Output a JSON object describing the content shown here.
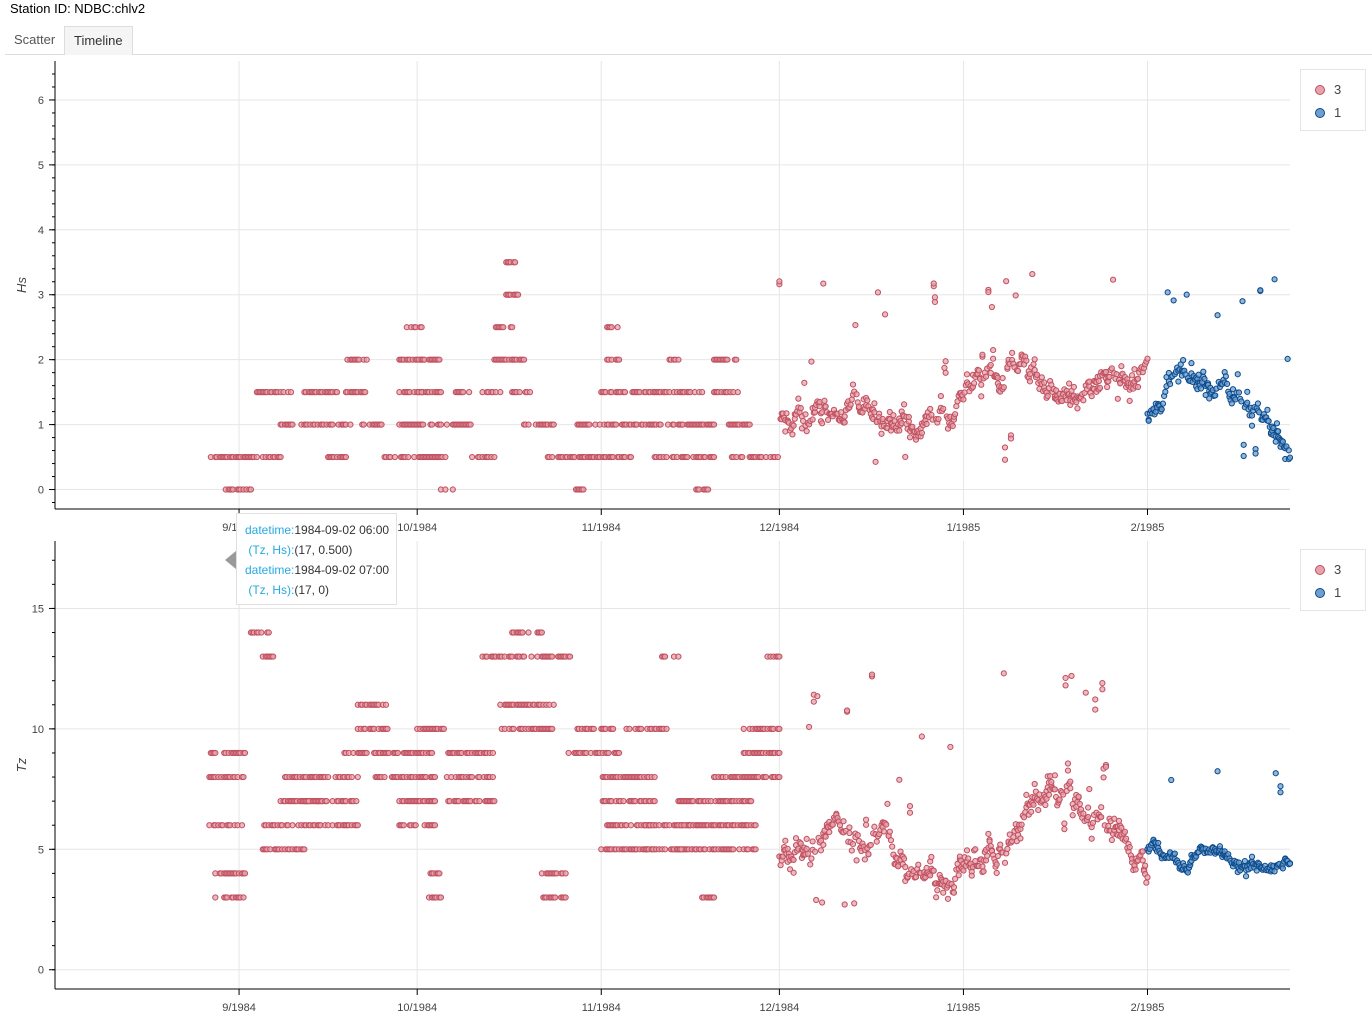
{
  "station": {
    "title": "Station ID: NDBC:chlv2"
  },
  "tabs": [
    {
      "label": "Scatter",
      "active": false
    },
    {
      "label": "Timeline",
      "active": true
    }
  ],
  "colors": {
    "series_3_fill": "#e7a3ad",
    "series_3_stroke": "#c0505f",
    "series_1_fill": "#6d9fd1",
    "series_1_stroke": "#0b4a8a"
  },
  "legend": [
    {
      "label": "3",
      "color": "#e7a3ad",
      "border": "#c0505f"
    },
    {
      "label": "1",
      "color": "#6d9fd1",
      "border": "#0b4a8a"
    }
  ],
  "tooltip": {
    "rows": [
      {
        "key": "datetime:",
        "value": "1984-09-02 06:00"
      },
      {
        "key": " (Tz, Hs):",
        "value": "(17, 0.500)"
      },
      {
        "key": "datetime:",
        "value": "1984-09-02 07:00"
      },
      {
        "key": " (Tz, Hs):",
        "value": "(17, 0)"
      }
    ]
  },
  "chart_data": [
    {
      "type": "scatter",
      "ylabel": "Hs",
      "xlim": [
        "1984-08-01",
        "1985-02-25"
      ],
      "ylim": [
        -0.3,
        6.6
      ],
      "x_ticks": [
        {
          "date": "1984-09-01",
          "label": "9/1984"
        },
        {
          "date": "1984-10-01",
          "label": "10/1984"
        },
        {
          "date": "1984-11-01",
          "label": "11/1984"
        },
        {
          "date": "1984-12-01",
          "label": "12/1984"
        },
        {
          "date": "1985-01-01",
          "label": "1/1985"
        },
        {
          "date": "1985-02-01",
          "label": "2/1985"
        }
      ],
      "y_ticks": [
        0,
        1,
        2,
        3,
        4,
        5,
        6
      ],
      "grid": true,
      "legend": "right",
      "series": [
        {
          "name": "3",
          "segments": [
            {
              "from": "1984-08-27",
              "to": "1984-09-04",
              "levels": [
                0.5
              ]
            },
            {
              "from": "1984-08-29",
              "to": "1984-09-03",
              "levels": [
                0
              ]
            },
            {
              "from": "1984-09-05",
              "to": "1984-09-08",
              "levels": [
                0.5
              ]
            },
            {
              "from": "1984-09-04",
              "to": "1984-09-10",
              "levels": [
                1.5
              ]
            },
            {
              "from": "1984-09-08",
              "to": "1984-09-20",
              "levels": [
                1
              ]
            },
            {
              "from": "1984-09-12",
              "to": "1984-09-18",
              "levels": [
                1.5
              ]
            },
            {
              "from": "1984-09-16",
              "to": "1984-09-19",
              "levels": [
                0.5
              ]
            },
            {
              "from": "1984-09-19",
              "to": "1984-09-23",
              "levels": [
                2,
                1.5
              ]
            },
            {
              "from": "1984-09-21",
              "to": "1984-09-25",
              "levels": [
                1
              ]
            },
            {
              "from": "1984-09-25",
              "to": "1984-10-03",
              "levels": [
                0.5
              ]
            },
            {
              "from": "1984-09-28",
              "to": "1984-10-02",
              "levels": [
                1,
                1.5,
                2
              ]
            },
            {
              "from": "1984-09-29",
              "to": "1984-10-02",
              "levels": [
                2.5
              ]
            },
            {
              "from": "1984-10-01",
              "to": "1984-10-05",
              "levels": [
                2,
                1.5
              ]
            },
            {
              "from": "1984-10-03",
              "to": "1984-10-06",
              "levels": [
                0.5,
                1
              ]
            },
            {
              "from": "1984-10-05",
              "to": "1984-10-07",
              "levels": [
                0
              ]
            },
            {
              "from": "1984-10-07",
              "to": "1984-10-10",
              "levels": [
                1,
                1.5
              ]
            },
            {
              "from": "1984-10-10",
              "to": "1984-10-14",
              "levels": [
                0.5
              ]
            },
            {
              "from": "1984-10-12",
              "to": "1984-10-15",
              "levels": [
                1.5
              ]
            },
            {
              "from": "1984-10-14",
              "to": "1984-10-17",
              "levels": [
                2,
                2.5
              ]
            },
            {
              "from": "1984-10-16",
              "to": "1984-10-18",
              "levels": [
                3,
                3.5
              ]
            },
            {
              "from": "1984-10-17",
              "to": "1984-10-20",
              "levels": [
                2,
                1.5
              ]
            },
            {
              "from": "1984-10-19",
              "to": "1984-10-24",
              "levels": [
                1
              ]
            },
            {
              "from": "1984-10-23",
              "to": "1984-11-06",
              "levels": [
                0.5
              ]
            },
            {
              "from": "1984-10-27",
              "to": "1984-10-29",
              "levels": [
                0
              ]
            },
            {
              "from": "1984-10-28",
              "to": "1984-11-01",
              "levels": [
                1
              ]
            },
            {
              "from": "1984-11-01",
              "to": "1984-11-05",
              "levels": [
                1,
                1.5
              ]
            },
            {
              "from": "1984-11-02",
              "to": "1984-11-04",
              "levels": [
                2,
                2.5
              ]
            },
            {
              "from": "1984-11-05",
              "to": "1984-11-20",
              "levels": [
                1
              ]
            },
            {
              "from": "1984-11-06",
              "to": "1984-11-18",
              "levels": [
                1.5
              ]
            },
            {
              "from": "1984-11-10",
              "to": "1984-11-17",
              "levels": [
                0.5
              ]
            },
            {
              "from": "1984-11-12",
              "to": "1984-11-14",
              "levels": [
                2
              ]
            },
            {
              "from": "1984-11-17",
              "to": "1984-11-20",
              "levels": [
                0.5
              ]
            },
            {
              "from": "1984-11-17",
              "to": "1984-11-19",
              "levels": [
                0
              ]
            },
            {
              "from": "1984-11-20",
              "to": "1984-11-24",
              "levels": [
                1.5,
                2
              ]
            },
            {
              "from": "1984-11-22",
              "to": "1984-11-26",
              "levels": [
                1
              ]
            },
            {
              "from": "1984-11-23",
              "to": "1984-12-01",
              "levels": [
                0.5
              ]
            }
          ]
        }
      ],
      "noisy_regions": [
        {
          "series": "3",
          "from": "1984-12-01",
          "to": "1985-02-01",
          "y_min": 0.3,
          "y_max": 3.5
        },
        {
          "series": "1",
          "from": "1985-02-01",
          "to": "1985-02-25",
          "y_min": 0.3,
          "y_max": 3.3
        }
      ]
    },
    {
      "type": "scatter",
      "ylabel": "Tz",
      "xlim": [
        "1984-08-01",
        "1985-02-25"
      ],
      "ylim": [
        -0.8,
        17.8
      ],
      "x_ticks": [
        {
          "date": "1984-09-01",
          "label": "9/1984"
        },
        {
          "date": "1984-10-01",
          "label": "10/1984"
        },
        {
          "date": "1984-11-01",
          "label": "11/1984"
        },
        {
          "date": "1984-12-01",
          "label": "12/1984"
        },
        {
          "date": "1985-01-01",
          "label": "1/1985"
        },
        {
          "date": "1985-02-01",
          "label": "2/1985"
        }
      ],
      "y_ticks": [
        0,
        5,
        10,
        15
      ],
      "grid": true,
      "legend": "right",
      "series": [
        {
          "name": "3",
          "segments": [
            {
              "from": "1984-09-01",
              "to": "1984-09-03",
              "levels": [
                17
              ]
            },
            {
              "from": "1984-08-27",
              "to": "1984-09-02",
              "levels": [
                6,
                8,
                9
              ]
            },
            {
              "from": "1984-08-28",
              "to": "1984-09-02",
              "levels": [
                3,
                4
              ]
            },
            {
              "from": "1984-09-03",
              "to": "1984-09-06",
              "levels": [
                14
              ]
            },
            {
              "from": "1984-09-05",
              "to": "1984-09-07",
              "levels": [
                13
              ]
            },
            {
              "from": "1984-09-05",
              "to": "1984-09-12",
              "levels": [
                5,
                6
              ]
            },
            {
              "from": "1984-09-08",
              "to": "1984-09-15",
              "levels": [
                8,
                7
              ]
            },
            {
              "from": "1984-09-12",
              "to": "1984-09-21",
              "levels": [
                6,
                7,
                8
              ]
            },
            {
              "from": "1984-09-18",
              "to": "1984-09-25",
              "levels": [
                9
              ]
            },
            {
              "from": "1984-09-21",
              "to": "1984-09-26",
              "levels": [
                10,
                11
              ]
            },
            {
              "from": "1984-09-24",
              "to": "1984-10-04",
              "levels": [
                8,
                9
              ]
            },
            {
              "from": "1984-09-28",
              "to": "1984-10-04",
              "levels": [
                6,
                7
              ]
            },
            {
              "from": "1984-10-01",
              "to": "1984-10-06",
              "levels": [
                10
              ]
            },
            {
              "from": "1984-10-03",
              "to": "1984-10-05",
              "levels": [
                3,
                4
              ]
            },
            {
              "from": "1984-10-06",
              "to": "1984-10-14",
              "levels": [
                9,
                8,
                7
              ]
            },
            {
              "from": "1984-10-12",
              "to": "1984-10-19",
              "levels": [
                13
              ]
            },
            {
              "from": "1984-10-17",
              "to": "1984-10-22",
              "levels": [
                14
              ]
            },
            {
              "from": "1984-10-15",
              "to": "1984-10-24",
              "levels": [
                11,
                10
              ]
            },
            {
              "from": "1984-10-20",
              "to": "1984-10-27",
              "levels": [
                13
              ]
            },
            {
              "from": "1984-10-22",
              "to": "1984-10-26",
              "levels": [
                4,
                3
              ]
            },
            {
              "from": "1984-10-26",
              "to": "1984-11-04",
              "levels": [
                9
              ]
            },
            {
              "from": "1984-10-28",
              "to": "1984-11-03",
              "levels": [
                10
              ]
            },
            {
              "from": "1984-11-01",
              "to": "1984-11-10",
              "levels": [
                5,
                6,
                7,
                8
              ]
            },
            {
              "from": "1984-11-05",
              "to": "1984-11-12",
              "levels": [
                10
              ]
            },
            {
              "from": "1984-11-08",
              "to": "1984-11-17",
              "levels": [
                6,
                5
              ]
            },
            {
              "from": "1984-11-11",
              "to": "1984-11-14",
              "levels": [
                13
              ]
            },
            {
              "from": "1984-11-13",
              "to": "1984-11-27",
              "levels": [
                5
              ]
            },
            {
              "from": "1984-11-14",
              "to": "1984-11-27",
              "levels": [
                6,
                7
              ]
            },
            {
              "from": "1984-11-18",
              "to": "1984-11-20",
              "levels": [
                3
              ]
            },
            {
              "from": "1984-11-20",
              "to": "1984-12-01",
              "levels": [
                8
              ]
            },
            {
              "from": "1984-11-25",
              "to": "1984-12-01",
              "levels": [
                9,
                10
              ]
            },
            {
              "from": "1984-11-29",
              "to": "1984-12-01",
              "levels": [
                13
              ]
            }
          ]
        }
      ],
      "noisy_regions": [
        {
          "series": "3",
          "from": "1984-12-01",
          "to": "1985-02-01",
          "y_min": 2.6,
          "y_max": 12.5
        },
        {
          "series": "1",
          "from": "1985-02-01",
          "to": "1985-02-25",
          "y_min": 3.8,
          "y_max": 8.4
        }
      ]
    }
  ]
}
